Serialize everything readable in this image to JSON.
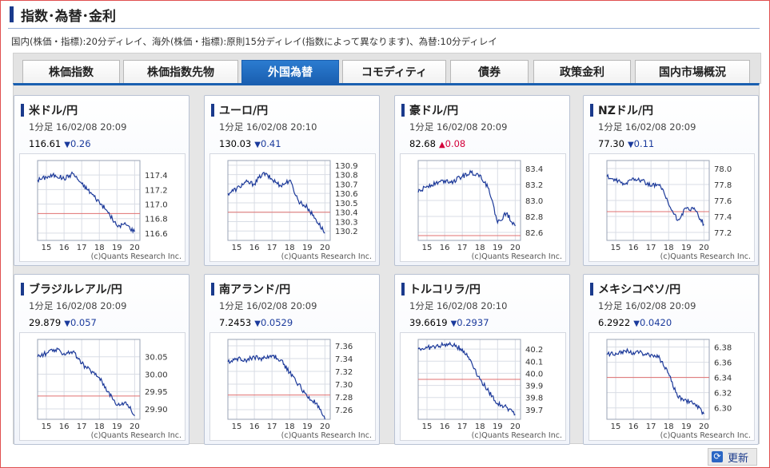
{
  "header": {
    "title": "指数･為替･金利"
  },
  "note": "国内(株価・指標):20分ディレイ、海外(株価・指標):原則15分ディレイ(指数によって異なります)、為替:10分ディレイ",
  "tabs": [
    {
      "label": "株価指数",
      "active": false
    },
    {
      "label": "株価指数先物",
      "active": false
    },
    {
      "label": "外国為替",
      "active": true
    },
    {
      "label": "コモディティ",
      "active": false
    },
    {
      "label": "債券",
      "active": false
    },
    {
      "label": "政策金利",
      "active": false
    },
    {
      "label": "国内市場概況",
      "active": false
    }
  ],
  "colors": {
    "down": "#1a3a9c",
    "up": "#d4003a",
    "line": "#1d3a9a",
    "refline": "#e07070",
    "accent": "#1a5fb0"
  },
  "cards": [
    {
      "name": "米ドル/円",
      "meta": "1分足 16/02/08 20:09",
      "value": "116.61",
      "change": "0.26",
      "direction": "down",
      "triangle": "▼"
    },
    {
      "name": "ユーロ/円",
      "meta": "1分足 16/02/08 20:10",
      "value": "130.03",
      "change": "0.41",
      "direction": "down",
      "triangle": "▼"
    },
    {
      "name": "豪ドル/円",
      "meta": "1分足 16/02/08 20:09",
      "value": "82.68",
      "change": "0.08",
      "direction": "up",
      "triangle": "▲"
    },
    {
      "name": "NZドル/円",
      "meta": "1分足 16/02/08 20:09",
      "value": "77.30",
      "change": "0.11",
      "direction": "down",
      "triangle": "▼"
    },
    {
      "name": "ブラジルレアル/円",
      "meta": "1分足 16/02/08 20:09",
      "value": "29.879",
      "change": "0.057",
      "direction": "down",
      "triangle": "▼"
    },
    {
      "name": "南アランド/円",
      "meta": "1分足 16/02/08 20:09",
      "value": "7.2453",
      "change": "0.0529",
      "direction": "down",
      "triangle": "▼"
    },
    {
      "name": "トルコリラ/円",
      "meta": "1分足 16/02/08 20:10",
      "value": "39.6619",
      "change": "0.2937",
      "direction": "down",
      "triangle": "▼"
    },
    {
      "name": "メキシコペソ/円",
      "meta": "1分足 16/02/08 20:09",
      "value": "6.2922",
      "change": "0.0420",
      "direction": "down",
      "triangle": "▼"
    }
  ],
  "chart_data": [
    {
      "type": "line",
      "x_ticks": [
        "15",
        "16",
        "17",
        "18",
        "19",
        "20"
      ],
      "y_ticks": [
        "117.4",
        "117.2",
        "117.0",
        "116.8",
        "116.6"
      ],
      "ylim": [
        116.5,
        117.6
      ],
      "ref": 116.87,
      "credit": "(c)Quants Research Inc.",
      "x": [
        14.5,
        15.0,
        15.5,
        16.0,
        16.5,
        17.0,
        17.5,
        18.0,
        18.5,
        19.0,
        19.5,
        20.0
      ],
      "y": [
        117.33,
        117.37,
        117.4,
        117.35,
        117.42,
        117.28,
        117.16,
        117.03,
        116.88,
        116.7,
        116.72,
        116.62
      ]
    },
    {
      "type": "line",
      "x_ticks": [
        "15",
        "16",
        "17",
        "18",
        "19",
        "20"
      ],
      "y_ticks": [
        "130.9",
        "130.8",
        "130.7",
        "130.6",
        "130.5",
        "130.4",
        "130.3",
        "130.2"
      ],
      "ylim": [
        130.1,
        130.95
      ],
      "ref": 130.4,
      "credit": "(c)Quants Research Inc.",
      "x": [
        14.5,
        15.0,
        15.5,
        16.0,
        16.5,
        17.0,
        17.5,
        18.0,
        18.5,
        19.0,
        19.5,
        20.0
      ],
      "y": [
        130.6,
        130.65,
        130.72,
        130.7,
        130.82,
        130.75,
        130.68,
        130.74,
        130.52,
        130.45,
        130.32,
        130.18
      ]
    },
    {
      "type": "line",
      "x_ticks": [
        "15",
        "16",
        "17",
        "18",
        "19",
        "20"
      ],
      "y_ticks": [
        "83.4",
        "83.2",
        "83.0",
        "82.8",
        "82.6"
      ],
      "ylim": [
        82.5,
        83.5
      ],
      "ref": 82.56,
      "credit": "(c)Quants Research Inc.",
      "x": [
        14.5,
        15.0,
        15.5,
        16.0,
        16.5,
        17.0,
        17.5,
        18.0,
        18.5,
        19.0,
        19.5,
        20.0
      ],
      "y": [
        83.1,
        83.18,
        83.22,
        83.25,
        83.24,
        83.3,
        83.35,
        83.32,
        83.15,
        82.72,
        82.84,
        82.68
      ]
    },
    {
      "type": "line",
      "x_ticks": [
        "15",
        "16",
        "17",
        "18",
        "19",
        "20"
      ],
      "y_ticks": [
        "78.0",
        "77.8",
        "77.6",
        "77.4",
        "77.2"
      ],
      "ylim": [
        77.1,
        78.1
      ],
      "ref": 77.46,
      "credit": "(c)Quants Research Inc.",
      "x": [
        14.5,
        15.0,
        15.5,
        16.0,
        16.5,
        17.0,
        17.5,
        18.0,
        18.5,
        19.0,
        19.5,
        20.0
      ],
      "y": [
        77.9,
        77.85,
        77.8,
        77.88,
        77.85,
        77.78,
        77.8,
        77.55,
        77.35,
        77.5,
        77.48,
        77.3
      ]
    },
    {
      "type": "line",
      "x_ticks": [
        "15",
        "16",
        "17",
        "18",
        "19",
        "20"
      ],
      "y_ticks": [
        "30.05",
        "30.00",
        "29.95",
        "29.90"
      ],
      "ylim": [
        29.87,
        30.1
      ],
      "ref": 29.937,
      "credit": "(c)Quants Research Inc.",
      "x": [
        14.5,
        15.0,
        15.5,
        16.0,
        16.5,
        17.0,
        17.5,
        18.0,
        18.5,
        19.0,
        19.5,
        20.0
      ],
      "y": [
        30.05,
        30.06,
        30.07,
        30.06,
        30.065,
        30.03,
        30.01,
        29.99,
        29.95,
        29.91,
        29.92,
        29.88
      ]
    },
    {
      "type": "line",
      "x_ticks": [
        "15",
        "16",
        "17",
        "18",
        "19",
        "20"
      ],
      "y_ticks": [
        "7.36",
        "7.34",
        "7.32",
        "7.30",
        "7.28",
        "7.26"
      ],
      "ylim": [
        7.245,
        7.37
      ],
      "ref": 7.283,
      "credit": "(c)Quants Research Inc.",
      "x": [
        14.5,
        15.0,
        15.5,
        16.0,
        16.5,
        17.0,
        17.5,
        18.0,
        18.5,
        19.0,
        19.5,
        20.0
      ],
      "y": [
        7.335,
        7.34,
        7.338,
        7.342,
        7.34,
        7.345,
        7.338,
        7.318,
        7.3,
        7.28,
        7.27,
        7.245
      ]
    },
    {
      "type": "line",
      "x_ticks": [
        "15",
        "16",
        "17",
        "18",
        "19",
        "20"
      ],
      "y_ticks": [
        "40.2",
        "40.1",
        "40.0",
        "39.9",
        "39.8",
        "39.7"
      ],
      "ylim": [
        39.62,
        40.28
      ],
      "ref": 39.95,
      "credit": "(c)Quants Research Inc.",
      "x": [
        14.5,
        15.0,
        15.5,
        16.0,
        16.5,
        17.0,
        17.5,
        18.0,
        18.5,
        19.0,
        19.5,
        20.0
      ],
      "y": [
        40.2,
        40.21,
        40.22,
        40.24,
        40.23,
        40.2,
        40.1,
        39.95,
        39.85,
        39.75,
        39.72,
        39.66
      ]
    },
    {
      "type": "line",
      "x_ticks": [
        "15",
        "16",
        "17",
        "18",
        "19",
        "20"
      ],
      "y_ticks": [
        "6.38",
        "6.36",
        "6.34",
        "6.32",
        "6.30"
      ],
      "ylim": [
        6.285,
        6.39
      ],
      "ref": 6.34,
      "credit": "(c)Quants Research Inc.",
      "x": [
        14.5,
        15.0,
        15.5,
        16.0,
        16.5,
        17.0,
        17.5,
        18.0,
        18.5,
        19.0,
        19.5,
        20.0
      ],
      "y": [
        6.37,
        6.372,
        6.375,
        6.373,
        6.372,
        6.37,
        6.365,
        6.345,
        6.315,
        6.31,
        6.305,
        6.292
      ]
    }
  ],
  "refresh": {
    "label": "更新",
    "icon": "refresh-icon"
  }
}
